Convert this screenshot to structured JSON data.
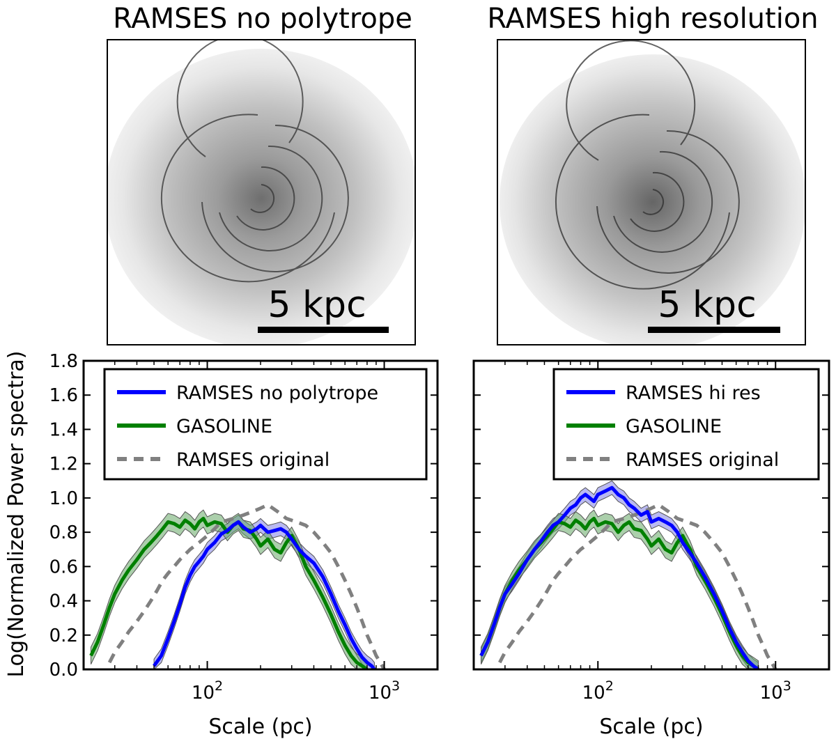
{
  "panels": [
    {
      "title": "RAMSES no polytrope",
      "scalebar_label": "5 kpc"
    },
    {
      "title": "RAMSES high resolution",
      "scalebar_label": "5 kpc"
    }
  ],
  "shared": {
    "ylabel": "Log(Normalized Power spectra)",
    "yticks": [
      "0.0",
      "0.2",
      "0.4",
      "0.6",
      "0.8",
      "1.0",
      "1.2",
      "1.4",
      "1.6",
      "1.8"
    ],
    "xticks": [
      {
        "base": "10",
        "exp": "2"
      },
      {
        "base": "10",
        "exp": "3"
      }
    ]
  },
  "colors": {
    "blue": "#0000ff",
    "green": "#008000",
    "gray": "#808080",
    "blue_band": "#7f7fe6",
    "green_band": "#66a866"
  },
  "chart_data": [
    {
      "type": "line",
      "xscale": "log",
      "xlabel": "Scale (pc)",
      "ylabel": "Log(Normalized Power spectra)",
      "xlim": [
        20,
        2000
      ],
      "ylim": [
        0,
        1.8
      ],
      "legend_position": "upper-left",
      "series": [
        {
          "name": "RAMSES no polytrope",
          "color": "#0000ff",
          "style": "solid",
          "x": [
            50,
            55,
            60,
            65,
            70,
            75,
            80,
            85,
            90,
            95,
            100,
            110,
            120,
            130,
            140,
            150,
            160,
            175,
            190,
            200,
            220,
            240,
            260,
            280,
            300,
            330,
            360,
            400,
            450,
            500,
            550,
            600,
            650,
            700,
            750,
            800,
            850,
            880
          ],
          "y": [
            0.02,
            0.08,
            0.18,
            0.28,
            0.38,
            0.48,
            0.55,
            0.6,
            0.63,
            0.66,
            0.7,
            0.74,
            0.79,
            0.81,
            0.84,
            0.86,
            0.83,
            0.8,
            0.82,
            0.84,
            0.8,
            0.81,
            0.82,
            0.8,
            0.76,
            0.7,
            0.66,
            0.62,
            0.54,
            0.44,
            0.34,
            0.26,
            0.18,
            0.12,
            0.07,
            0.04,
            0.02,
            0.0
          ],
          "band": 0.04
        },
        {
          "name": "GASOLINE",
          "color": "#008000",
          "style": "solid",
          "x": [
            22,
            24,
            26,
            28,
            30,
            33,
            36,
            40,
            44,
            48,
            52,
            56,
            60,
            65,
            70,
            75,
            80,
            85,
            90,
            95,
            100,
            110,
            120,
            130,
            140,
            150,
            160,
            175,
            190,
            200,
            220,
            240,
            260,
            280,
            300,
            330,
            360,
            400,
            450,
            500,
            550,
            600,
            650,
            700,
            750,
            800
          ],
          "y": [
            0.08,
            0.16,
            0.26,
            0.36,
            0.44,
            0.52,
            0.58,
            0.64,
            0.7,
            0.74,
            0.78,
            0.82,
            0.86,
            0.85,
            0.83,
            0.87,
            0.85,
            0.82,
            0.86,
            0.88,
            0.84,
            0.86,
            0.85,
            0.8,
            0.84,
            0.86,
            0.82,
            0.81,
            0.76,
            0.72,
            0.76,
            0.7,
            0.68,
            0.74,
            0.78,
            0.7,
            0.6,
            0.52,
            0.42,
            0.32,
            0.22,
            0.14,
            0.08,
            0.04,
            0.02,
            0.0
          ],
          "band": 0.05
        },
        {
          "name": "RAMSES original",
          "color": "#808080",
          "style": "dashed",
          "x": [
            28,
            30,
            33,
            36,
            40,
            44,
            48,
            52,
            56,
            60,
            65,
            70,
            80,
            90,
            100,
            110,
            120,
            140,
            160,
            180,
            200,
            220,
            250,
            280,
            320,
            360,
            400,
            450,
            500,
            550,
            600,
            650,
            700,
            750,
            800,
            850,
            900,
            950,
            1000
          ],
          "y": [
            0.04,
            0.1,
            0.16,
            0.22,
            0.28,
            0.34,
            0.4,
            0.46,
            0.52,
            0.56,
            0.6,
            0.64,
            0.7,
            0.74,
            0.78,
            0.82,
            0.86,
            0.88,
            0.9,
            0.92,
            0.94,
            0.96,
            0.92,
            0.88,
            0.86,
            0.84,
            0.8,
            0.74,
            0.68,
            0.6,
            0.52,
            0.44,
            0.36,
            0.28,
            0.2,
            0.14,
            0.08,
            0.04,
            0.0
          ]
        }
      ]
    },
    {
      "type": "line",
      "xscale": "log",
      "xlabel": "Scale (pc)",
      "ylabel": "Log(Normalized Power spectra)",
      "xlim": [
        20,
        2000
      ],
      "ylim": [
        0,
        1.8
      ],
      "legend_position": "upper-right",
      "series": [
        {
          "name": "RAMSES hi res",
          "color": "#0000ff",
          "style": "solid",
          "x": [
            22,
            24,
            26,
            28,
            30,
            33,
            36,
            40,
            44,
            48,
            52,
            56,
            60,
            65,
            70,
            75,
            80,
            85,
            90,
            95,
            100,
            110,
            120,
            130,
            140,
            150,
            160,
            175,
            190,
            200,
            220,
            240,
            260,
            280,
            300,
            330,
            360,
            400,
            450,
            500,
            550,
            600,
            650,
            700,
            750,
            800
          ],
          "y": [
            0.08,
            0.16,
            0.26,
            0.36,
            0.44,
            0.5,
            0.56,
            0.64,
            0.7,
            0.75,
            0.8,
            0.84,
            0.86,
            0.9,
            0.94,
            0.96,
            1.0,
            1.02,
            1.0,
            0.98,
            1.02,
            1.04,
            1.06,
            1.02,
            1.0,
            0.96,
            0.94,
            0.9,
            0.92,
            0.86,
            0.88,
            0.86,
            0.84,
            0.8,
            0.74,
            0.68,
            0.62,
            0.54,
            0.44,
            0.34,
            0.24,
            0.16,
            0.1,
            0.05,
            0.02,
            0.0
          ],
          "band": 0.04
        },
        {
          "name": "GASOLINE",
          "color": "#008000",
          "style": "solid",
          "x": [
            22,
            24,
            26,
            28,
            30,
            33,
            36,
            40,
            44,
            48,
            52,
            56,
            60,
            65,
            70,
            75,
            80,
            85,
            90,
            95,
            100,
            110,
            120,
            130,
            140,
            150,
            160,
            175,
            190,
            200,
            220,
            240,
            260,
            280,
            300,
            330,
            360,
            400,
            450,
            500,
            550,
            600,
            650,
            700,
            750,
            800
          ],
          "y": [
            0.08,
            0.16,
            0.26,
            0.36,
            0.44,
            0.52,
            0.58,
            0.64,
            0.7,
            0.74,
            0.78,
            0.82,
            0.86,
            0.85,
            0.83,
            0.87,
            0.85,
            0.82,
            0.86,
            0.88,
            0.84,
            0.86,
            0.85,
            0.8,
            0.84,
            0.86,
            0.82,
            0.81,
            0.76,
            0.72,
            0.76,
            0.7,
            0.68,
            0.74,
            0.78,
            0.7,
            0.6,
            0.52,
            0.42,
            0.32,
            0.22,
            0.14,
            0.08,
            0.04,
            0.02,
            0.0
          ],
          "band": 0.05
        },
        {
          "name": "RAMSES original",
          "color": "#808080",
          "style": "dashed",
          "x": [
            28,
            30,
            33,
            36,
            40,
            44,
            48,
            52,
            56,
            60,
            65,
            70,
            80,
            90,
            100,
            110,
            120,
            140,
            160,
            180,
            200,
            220,
            250,
            280,
            320,
            360,
            400,
            450,
            500,
            550,
            600,
            650,
            700,
            750,
            800,
            850,
            900,
            950,
            1000
          ],
          "y": [
            0.04,
            0.1,
            0.16,
            0.22,
            0.28,
            0.34,
            0.4,
            0.46,
            0.52,
            0.56,
            0.6,
            0.64,
            0.7,
            0.74,
            0.78,
            0.82,
            0.86,
            0.88,
            0.9,
            0.92,
            0.94,
            0.96,
            0.92,
            0.88,
            0.86,
            0.84,
            0.8,
            0.74,
            0.68,
            0.6,
            0.52,
            0.44,
            0.36,
            0.28,
            0.2,
            0.14,
            0.08,
            0.04,
            0.0
          ]
        }
      ]
    }
  ]
}
